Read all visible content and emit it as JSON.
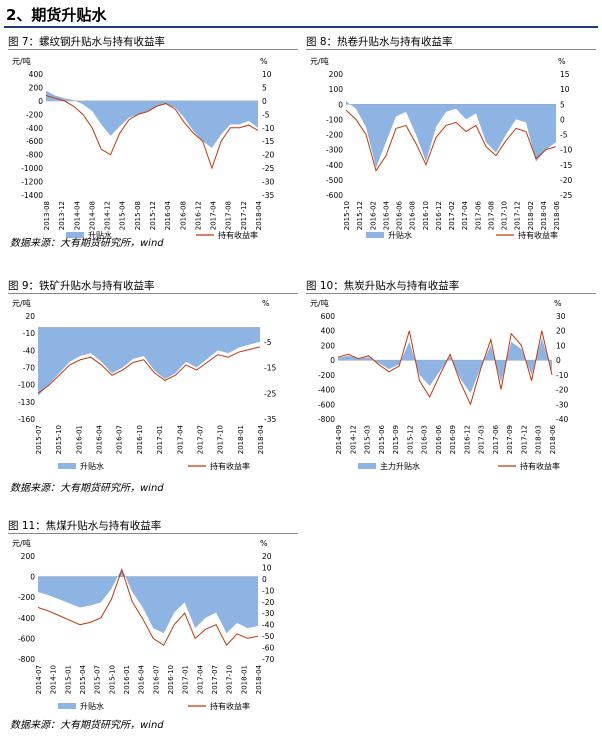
{
  "heading": "2、期货升贴水",
  "source": "数据来源：大有期货研究所，wind",
  "colors": {
    "basis": "#8eb4e3",
    "returns": "#c0390b",
    "rule": "#1a3d7c"
  },
  "figures": [
    {
      "title": "图 7：螺纹钢升贴水与持有收益率",
      "chart_data": {
        "type": "area+line",
        "left_unit": "元/吨",
        "right_unit": "%",
        "left_ylim": [
          -1400,
          400
        ],
        "left_ticks": [
          400,
          200,
          0,
          -200,
          -400,
          -600,
          -800,
          -1000,
          -1200,
          -1400
        ],
        "right_ylim": [
          -35,
          10
        ],
        "right_ticks": [
          10,
          5,
          0,
          -5,
          -10,
          -15,
          -20,
          -25,
          -30,
          -35
        ],
        "x_ticks": [
          "2013-08",
          "2013-12",
          "2014-04",
          "2014-08",
          "2014-12",
          "2015-04",
          "2015-08",
          "2015-12",
          "2016-04",
          "2016-08",
          "2016-12",
          "2017-04",
          "2017-08",
          "2017-12",
          "2018-04"
        ],
        "series": [
          {
            "name": "升贴水",
            "kind": "area",
            "values": [
              150,
              80,
              40,
              10,
              -50,
              -150,
              -350,
              -520,
              -380,
              -250,
              -200,
              -150,
              -80,
              -50,
              -100,
              -250,
              -450,
              -600,
              -700,
              -500,
              -350,
              -350,
              -300,
              -400
            ]
          },
          {
            "name": "持有收益率",
            "kind": "line",
            "values": [
              2,
              1,
              0,
              -2,
              -5,
              -10,
              -18,
              -20,
              -12,
              -7,
              -5,
              -4,
              -2,
              -1,
              -3,
              -8,
              -12,
              -15,
              -25,
              -15,
              -10,
              -10,
              -9,
              -11
            ]
          }
        ]
      }
    },
    {
      "title": "图 8：热卷升贴水与持有收益率",
      "chart_data": {
        "type": "area+line",
        "left_unit": "元/吨",
        "right_unit": "%",
        "left_ylim": [
          -600,
          200
        ],
        "left_ticks": [
          200,
          100,
          0,
          -100,
          -200,
          -300,
          -400,
          -500,
          -600
        ],
        "right_ylim": [
          -25,
          15
        ],
        "right_ticks": [
          15,
          10,
          5,
          0,
          -5,
          -10,
          -15,
          -20,
          -25
        ],
        "x_ticks": [
          "2015-10",
          "2015-12",
          "2016-02",
          "2016-04",
          "2016-06",
          "2016-08",
          "2016-10",
          "2016-12",
          "2017-02",
          "2017-04",
          "2017-06",
          "2017-08",
          "2017-10",
          "2017-12",
          "2018-02",
          "2018-04",
          "2018-06"
        ],
        "series": [
          {
            "name": "升贴水",
            "kind": "area",
            "values": [
              20,
              -30,
              -150,
              -420,
              -250,
              -80,
              -50,
              -200,
              -380,
              -150,
              -50,
              -30,
              -100,
              -60,
              -250,
              -320,
              -200,
              -100,
              -120,
              -380,
              -300,
              -250
            ]
          },
          {
            "name": "持有收益率",
            "kind": "line",
            "values": [
              3,
              0,
              -5,
              -17,
              -12,
              -3,
              -2,
              -8,
              -15,
              -6,
              -2,
              -1,
              -4,
              -2,
              -9,
              -12,
              -7,
              -3,
              -4,
              -13,
              -10,
              -9
            ]
          }
        ]
      }
    },
    {
      "title": "图 9：铁矿升贴水与持有收益率",
      "chart_data": {
        "type": "area+line",
        "left_unit": "元/吨",
        "right_unit": "%",
        "left_ylim": [
          -160,
          20
        ],
        "left_ticks": [
          20,
          -10,
          -40,
          -70,
          -100,
          -130,
          -160
        ],
        "right_ylim": [
          -35,
          5
        ],
        "right_ticks": [
          -5,
          -15,
          -25,
          -35
        ],
        "x_ticks": [
          "2015-07",
          "2015-10",
          "2016-01",
          "2016-04",
          "2016-07",
          "2016-10",
          "2017-01",
          "2017-04",
          "2017-07",
          "2017-10",
          "2018-01",
          "2018-04"
        ],
        "series": [
          {
            "name": "升贴水",
            "kind": "area",
            "values": [
              -120,
              -100,
              -80,
              -60,
              -50,
              -45,
              -60,
              -80,
              -70,
              -55,
              -50,
              -75,
              -90,
              -80,
              -60,
              -70,
              -55,
              -40,
              -45,
              -35,
              -30,
              -25
            ]
          },
          {
            "name": "持有收益率",
            "kind": "line",
            "values": [
              -25,
              -22,
              -18,
              -14,
              -12,
              -11,
              -14,
              -18,
              -16,
              -13,
              -12,
              -17,
              -20,
              -18,
              -14,
              -16,
              -13,
              -10,
              -11,
              -9,
              -8,
              -7
            ]
          }
        ]
      }
    },
    {
      "title": "图 10：焦炭升贴水与持有收益率",
      "chart_data": {
        "type": "area+line",
        "left_unit": "元/吨",
        "right_unit": "%",
        "left_ylim": [
          -800,
          600
        ],
        "left_ticks": [
          600,
          400,
          200,
          0,
          -200,
          -400,
          -600,
          -800
        ],
        "right_ylim": [
          -40,
          30
        ],
        "right_ticks": [
          30,
          20,
          10,
          0,
          -10,
          -20,
          -30,
          -40
        ],
        "x_ticks": [
          "2014-09",
          "2014-12",
          "2015-03",
          "2015-06",
          "2015-09",
          "2015-12",
          "2016-03",
          "2016-06",
          "2016-09",
          "2016-12",
          "2017-03",
          "2017-06",
          "2017-09",
          "2017-12",
          "2018-03",
          "2018-06"
        ],
        "series": [
          {
            "name": "主力升贴水",
            "kind": "area",
            "values": [
              30,
              60,
              20,
              40,
              -40,
              -120,
              -60,
              250,
              -200,
              -350,
              -150,
              50,
              -250,
              -450,
              -100,
              200,
              -300,
              250,
              150,
              -200,
              300,
              -150
            ]
          },
          {
            "name": "持有收益率",
            "kind": "line",
            "values": [
              2,
              4,
              1,
              3,
              -3,
              -8,
              -4,
              20,
              -14,
              -25,
              -10,
              4,
              -15,
              -30,
              -6,
              14,
              -20,
              18,
              10,
              -14,
              20,
              -10
            ]
          }
        ]
      }
    },
    {
      "title": "图 11：焦煤升贴水与持有收益率",
      "chart_data": {
        "type": "area+line",
        "left_unit": "元/吨",
        "right_unit": "%",
        "left_ylim": [
          -800,
          200
        ],
        "left_ticks": [
          200,
          0,
          -200,
          -400,
          -600,
          -800
        ],
        "right_ylim": [
          -70,
          20
        ],
        "right_ticks": [
          20,
          10,
          0,
          -10,
          -20,
          -30,
          -40,
          -50,
          -60,
          -70
        ],
        "x_ticks": [
          "2014-07",
          "2014-10",
          "2015-01",
          "2015-04",
          "2015-07",
          "2015-10",
          "2016-01",
          "2016-04",
          "2016-07",
          "2016-10",
          "2017-01",
          "2017-04",
          "2017-07",
          "2017-10",
          "2018-01",
          "2018-04"
        ],
        "series": [
          {
            "name": "升贴水",
            "kind": "area",
            "values": [
              -150,
              -180,
              -220,
              -260,
              -300,
              -280,
              -250,
              -120,
              80,
              -150,
              -300,
              -500,
              -550,
              -350,
              -250,
              -500,
              -400,
              -350,
              -550,
              -450,
              -500,
              -480
            ]
          },
          {
            "name": "持有收益率",
            "kind": "line",
            "values": [
              -25,
              -28,
              -32,
              -36,
              -40,
              -38,
              -34,
              -18,
              8,
              -20,
              -35,
              -52,
              -58,
              -40,
              -30,
              -52,
              -44,
              -40,
              -58,
              -48,
              -52,
              -50
            ]
          }
        ]
      }
    }
  ]
}
